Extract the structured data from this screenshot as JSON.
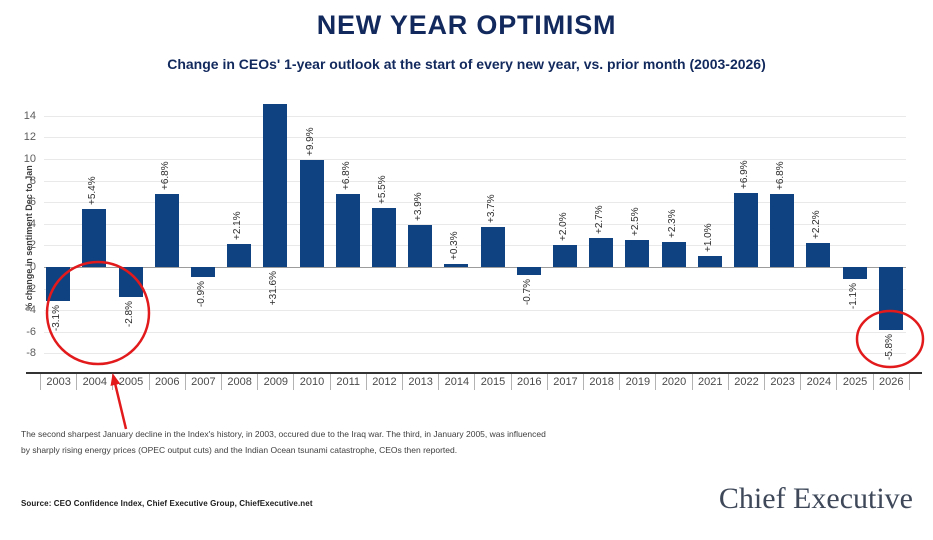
{
  "chart_data": {
    "type": "bar",
    "title": "NEW YEAR OPTIMISM",
    "subtitle": "Change in CEOs' 1-year outlook at the start of every new year, vs. prior month (2003-2026)",
    "ylabel": "% change in sentiment Dec to Jan",
    "categories": [
      "2003",
      "2004",
      "2005",
      "2006",
      "2007",
      "2008",
      "2009",
      "2010",
      "2011",
      "2012",
      "2013",
      "2014",
      "2015",
      "2016",
      "2017",
      "2018",
      "2019",
      "2020",
      "2021",
      "2022",
      "2023",
      "2024",
      "2025",
      "2026"
    ],
    "values": [
      -3.1,
      5.4,
      -2.8,
      6.8,
      -0.9,
      2.1,
      31.6,
      9.9,
      6.8,
      5.5,
      3.9,
      0.3,
      3.7,
      -0.7,
      2.0,
      2.7,
      2.5,
      2.3,
      1.0,
      6.9,
      6.8,
      2.2,
      -1.1,
      -5.8
    ],
    "labels": [
      "-3.1%",
      "+5.4%",
      "-2.8%",
      "+6.8%",
      "-0.9%",
      "+2.1%",
      "+31.6%",
      "+9.9%",
      "+6.8%",
      "+5.5%",
      "+3.9%",
      "+0.3%",
      "+3.7%",
      "-0.7%",
      "+2.0%",
      "+2.7%",
      "+2.5%",
      "+2.3%",
      "+1.0%",
      "+6.9%",
      "+6.8%",
      "+2.2%",
      "-1.1%",
      "-5.8%"
    ],
    "yticks": [
      14,
      12,
      10,
      8,
      6,
      4,
      2,
      0,
      -2,
      -4,
      -6,
      -8
    ],
    "ylim": [
      -8,
      14
    ],
    "clip_max": 15.1,
    "grid": true,
    "legend": "none"
  },
  "annotations": {
    "footnote_lines": [
      "The second sharpest January decline in the Index's history, in 2003, occured due to the Iraq war. The third, in January 2005, was influenced",
      "by sharply rising energy prices (OPEC output cuts) and the Indian Ocean tsunami catastrophe, CEOs then reported."
    ],
    "highlight_circles": [
      "2003-2005 January declines",
      "2026 decline (-5.8%)"
    ]
  },
  "footer": {
    "source": "Source: CEO Confidence Index, Chief Executive Group, ChiefExecutive.net",
    "logo": "Chief Executive"
  },
  "colors": {
    "navy": "#12295d",
    "bar": "#0e4280",
    "red": "#e21a1c",
    "gridline": "#e9e9e9",
    "zero_line": "#9c9c9c"
  }
}
